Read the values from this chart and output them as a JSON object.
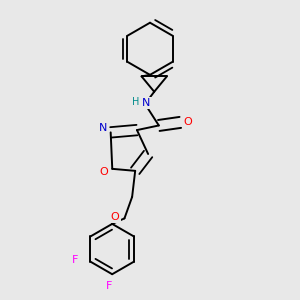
{
  "bg_color": "#e8e8e8",
  "line_color": "#000000",
  "atom_colors": {
    "N": "#0000cd",
    "O": "#ff0000",
    "F": "#ff00ff",
    "H": "#008b8b"
  },
  "figsize": [
    3.0,
    3.0
  ],
  "dpi": 100
}
